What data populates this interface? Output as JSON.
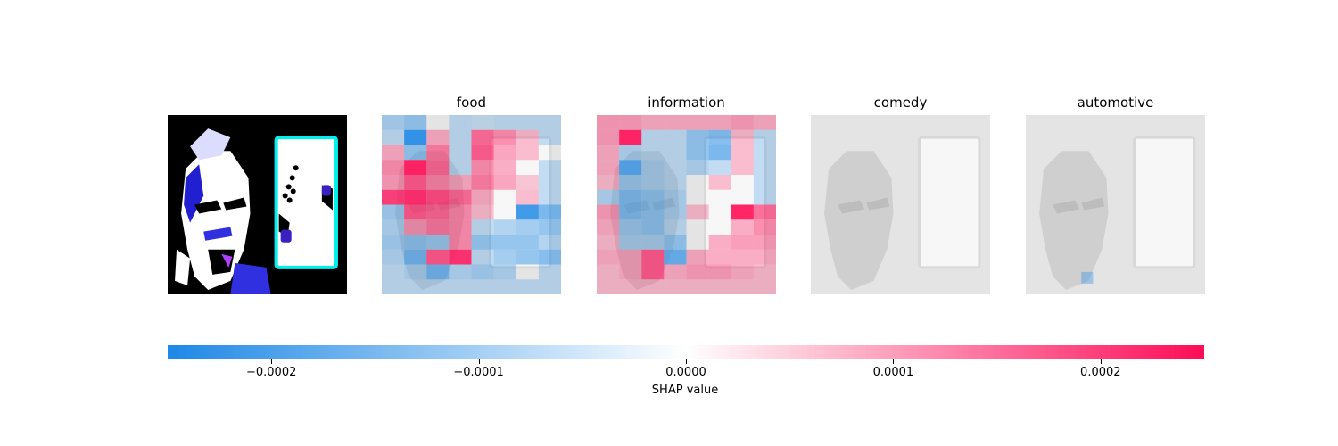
{
  "chart_data": {
    "type": "heatmap",
    "panels": [
      {
        "title": ""
      },
      {
        "title": "food"
      },
      {
        "title": "information"
      },
      {
        "title": "comedy"
      },
      {
        "title": "automotive"
      }
    ],
    "grid_size": 8,
    "value_range": [
      -0.00025,
      0.00025
    ],
    "colorbar": {
      "label": "SHAP value",
      "ticks": [
        {
          "value": -0.0002,
          "label": "−0.0002"
        },
        {
          "value": -0.0001,
          "label": "−0.0001"
        },
        {
          "value": 0.0,
          "label": "0.0000"
        },
        {
          "value": 0.0001,
          "label": "0.0001"
        },
        {
          "value": 0.0002,
          "label": "0.0002"
        }
      ],
      "negative_color": "#1e88e5",
      "positive_color": "#ff0d57"
    },
    "shap_values": {
      "food": [
        [
          -5e-05,
          -8e-05,
          0.0,
          -2e-05,
          -1e-05,
          -2e-05,
          -2e-05,
          -2e-05
        ],
        [
          -2e-05,
          -0.00022,
          4e-05,
          -2e-05,
          0.00012,
          8e-05,
          2e-05,
          -2e-05
        ],
        [
          4e-05,
          -8e-05,
          0.0001,
          -2e-05,
          0.00014,
          5e-05,
          2e-05,
          0.0
        ],
        [
          8e-05,
          0.00022,
          0.00012,
          -2e-05,
          8e-05,
          4e-05,
          0.0,
          -2e-05
        ],
        [
          6e-05,
          0.00014,
          8e-05,
          4e-05,
          0.0001,
          5e-05,
          1e-05,
          -2e-05
        ],
        [
          0.00018,
          0.0002,
          0.00016,
          0.00012,
          4e-05,
          0.0,
          2e-05,
          -2e-05
        ],
        [
          -6e-05,
          0.00014,
          0.00012,
          8e-05,
          2e-05,
          0.0,
          -0.0002,
          -0.00012
        ],
        [
          -4e-05,
          6e-05,
          0.0001,
          8e-05,
          -2e-05,
          -4e-05,
          -6e-05,
          -8e-05
        ],
        [
          -6e-05,
          -8e-05,
          -6e-05,
          8e-05,
          -8e-05,
          -8e-05,
          -8e-05,
          -4e-05
        ],
        [
          -4e-05,
          -0.00012,
          0.00014,
          0.0002,
          -2e-05,
          -6e-05,
          -8e-05,
          -0.0001
        ],
        [
          -2e-05,
          -4e-05,
          -0.00012,
          -4e-05,
          -6e-05,
          -4e-05,
          0.0,
          -2e-05
        ],
        [
          -2e-05,
          -2e-05,
          -2e-05,
          -2e-05,
          -2e-05,
          -2e-05,
          -2e-05,
          -2e-05
        ]
      ],
      "information": [
        [
          6e-05,
          6e-05,
          4e-05,
          4e-05,
          4e-05,
          4e-05,
          6e-05,
          4e-05
        ],
        [
          6e-05,
          0.00022,
          -2e-05,
          -2e-05,
          -8e-05,
          -0.0001,
          2e-05,
          -2e-05
        ],
        [
          4e-05,
          -4e-05,
          -2e-05,
          -2e-05,
          -8e-05,
          -0.00012,
          2e-05,
          -2e-05
        ],
        [
          4e-05,
          -0.00016,
          -4e-05,
          -2e-05,
          -4e-05,
          -2e-05,
          2e-05,
          -2e-05
        ],
        [
          2e-05,
          -6e-05,
          -4e-05,
          -2e-05,
          0.0,
          2e-05,
          0.0,
          -2e-05
        ],
        [
          -4e-05,
          -0.0001,
          -8e-05,
          -4e-05,
          0.0,
          0.0,
          0.0,
          -2e-05
        ],
        [
          6e-05,
          -0.0001,
          -8e-05,
          -4e-05,
          2e-05,
          0.0,
          0.00022,
          0.00012
        ],
        [
          4e-05,
          -6e-05,
          -8e-05,
          -2e-05,
          0.0,
          0.0,
          4e-05,
          8e-05
        ],
        [
          2e-05,
          -4e-05,
          -4e-05,
          -8e-05,
          0.0,
          4e-05,
          6e-05,
          6e-05
        ],
        [
          4e-05,
          4e-05,
          0.00014,
          -0.00014,
          4e-05,
          4e-05,
          4e-05,
          4e-05
        ],
        [
          2e-05,
          4e-05,
          0.00014,
          4e-05,
          6e-05,
          6e-05,
          4e-05,
          2e-05
        ],
        [
          2e-05,
          2e-05,
          2e-05,
          2e-05,
          2e-05,
          2e-05,
          2e-05,
          2e-05
        ]
      ],
      "comedy": [
        [
          0,
          0,
          0,
          0,
          0,
          0,
          0,
          0
        ],
        [
          0,
          0,
          0,
          0,
          0,
          0,
          0,
          0
        ],
        [
          0,
          0,
          0,
          0,
          0,
          0,
          0,
          0
        ],
        [
          0,
          0,
          0,
          0,
          0,
          0,
          0,
          0
        ],
        [
          0,
          0,
          0,
          0,
          0,
          0,
          0,
          0
        ],
        [
          0,
          0,
          0,
          0,
          0,
          0,
          0,
          0
        ],
        [
          0,
          0,
          0,
          0,
          0,
          0,
          0,
          0
        ],
        [
          0,
          0,
          0,
          0,
          0,
          0,
          0,
          0
        ],
        [
          0,
          0,
          0,
          0,
          0,
          0,
          0,
          0
        ],
        [
          0,
          0,
          0,
          0,
          0,
          0,
          0,
          0
        ],
        [
          0,
          0,
          0,
          0,
          0,
          0,
          0,
          0
        ],
        [
          0,
          0,
          0,
          0,
          0,
          0,
          0,
          0
        ]
      ],
      "automotive": [
        [
          0,
          0,
          0,
          0,
          0,
          0,
          0,
          0
        ],
        [
          0,
          0,
          0,
          0,
          0,
          0,
          0,
          0
        ],
        [
          0,
          0,
          0,
          0,
          0,
          0,
          0,
          0
        ],
        [
          0,
          0,
          0,
          0,
          0,
          0,
          0,
          0
        ],
        [
          0,
          0,
          0,
          0,
          0,
          0,
          0,
          0
        ],
        [
          0,
          0,
          0,
          0,
          0,
          0,
          0,
          0
        ],
        [
          0,
          0,
          0,
          0,
          0,
          0,
          0,
          0
        ],
        [
          0,
          0,
          0,
          0,
          0,
          0,
          0,
          0
        ],
        [
          0,
          0,
          0,
          0,
          0,
          0,
          0,
          0
        ],
        [
          0,
          0,
          0,
          0,
          0,
          0,
          0,
          0
        ],
        [
          0,
          0,
          0,
          0,
          0,
          0,
          0,
          0
        ],
        [
          0,
          0,
          0,
          0,
          0,
          0,
          0,
          0
        ]
      ]
    }
  }
}
